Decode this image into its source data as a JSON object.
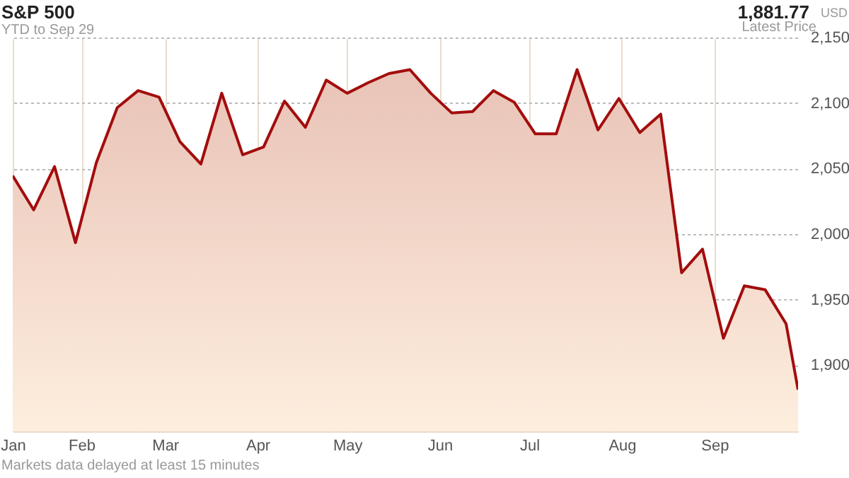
{
  "chart_data": {
    "type": "area",
    "title": "S&P 500",
    "subtitle": "YTD to Sep 29",
    "annotations": [
      "1,881.77",
      "USD",
      "Latest Price",
      "Markets data delayed at least 15 minutes"
    ],
    "x": [
      "--01-09",
      "--01-16",
      "--01-23",
      "--01-30",
      "--02-06",
      "--02-13",
      "--02-20",
      "--02-27",
      "--03-06",
      "--03-13",
      "--03-20",
      "--03-27",
      "--04-03",
      "--04-10",
      "--04-17",
      "--04-24",
      "--05-01",
      "--05-08",
      "--05-15",
      "--05-22",
      "--05-29",
      "--06-05",
      "--06-12",
      "--06-19",
      "--06-26",
      "--07-03",
      "--07-10",
      "--07-17",
      "--07-24",
      "--07-31",
      "--08-07",
      "--08-14",
      "--08-21",
      "--08-28",
      "--09-04",
      "--09-11",
      "--09-18",
      "--09-25",
      "--09-29"
    ],
    "series": [
      {
        "color": "#a30d0d",
        "values": [
          2045,
          2019,
          2052,
          1994,
          2055,
          2097,
          2110,
          2105,
          2071,
          2054,
          2108,
          2061,
          2067,
          2102,
          2082,
          2118,
          2108,
          2116,
          2123,
          2126,
          2108,
          2093,
          2094,
          2110,
          2101,
          2077,
          2077,
          2126,
          2080,
          2104,
          2078,
          2092,
          1971,
          1989,
          1921,
          1961,
          1958,
          1932,
          1881.77
        ]
      }
    ],
    "xlim": [
      "--01-09",
      "--09-29"
    ],
    "xticks": [
      {
        "value": "--01-09",
        "label": "Jan"
      },
      {
        "value": "--02-01",
        "label": "Feb"
      },
      {
        "value": "--03-01",
        "label": "Mar"
      },
      {
        "value": "--04-01",
        "label": "Apr"
      },
      {
        "value": "--05-01",
        "label": "May"
      },
      {
        "value": "--06-01",
        "label": "Jun"
      },
      {
        "value": "--07-01",
        "label": "Jul"
      },
      {
        "value": "--08-01",
        "label": "Aug"
      },
      {
        "value": "--09-01",
        "label": "Sep"
      }
    ],
    "ylim": [
      1850,
      2150
    ],
    "yticks": [
      {
        "value": 1900,
        "label": "1,900"
      },
      {
        "value": 1950,
        "label": "1,950"
      },
      {
        "value": 2000,
        "label": "2,000"
      },
      {
        "value": 2050,
        "label": "2,050"
      },
      {
        "value": 2100,
        "label": "2,100"
      },
      {
        "value": 2150,
        "label": "2,150"
      }
    ],
    "grid": true
  }
}
